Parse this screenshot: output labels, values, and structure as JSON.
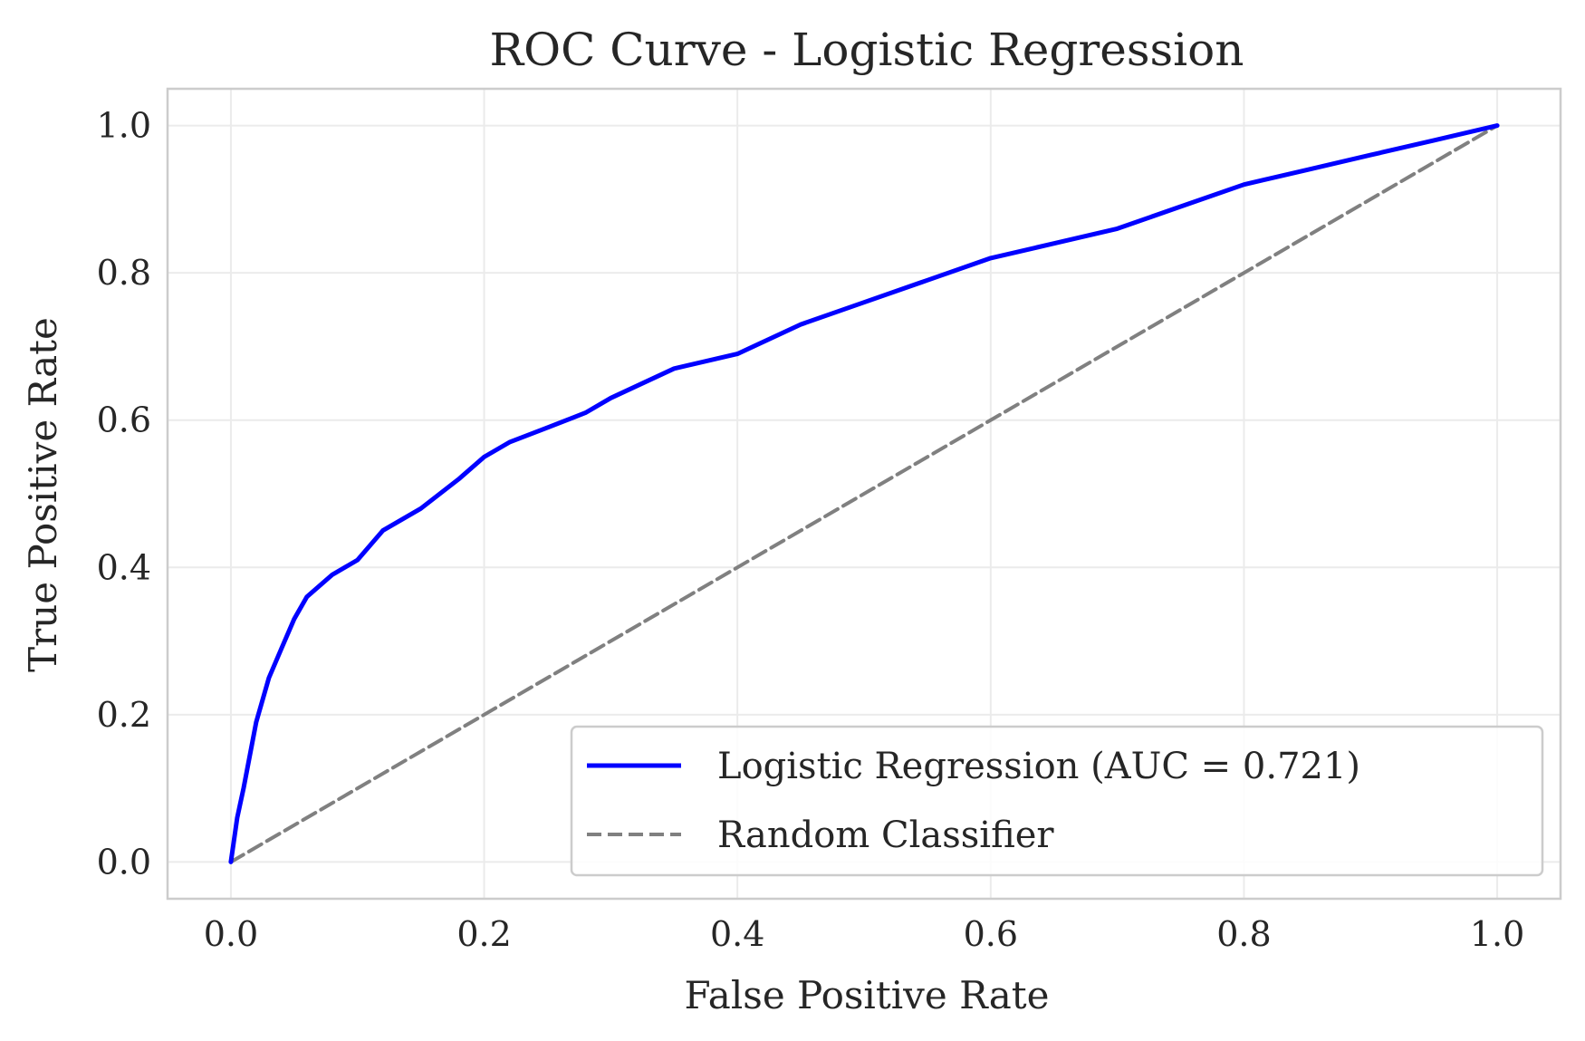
{
  "chart_data": {
    "type": "line",
    "title": "ROC Curve - Logistic Regression",
    "xlabel": "False Positive Rate",
    "ylabel": "True Positive Rate",
    "xlim": [
      -0.05,
      1.05
    ],
    "ylim": [
      -0.05,
      1.05
    ],
    "xticks": [
      "0.0",
      "0.2",
      "0.4",
      "0.6",
      "0.8",
      "1.0"
    ],
    "yticks": [
      "0.0",
      "0.2",
      "0.4",
      "0.6",
      "0.8",
      "1.0"
    ],
    "grid": true,
    "legend_position": "lower-right",
    "series": [
      {
        "name": "Logistic Regression (AUC = 0.721)",
        "color": "#0000ff",
        "style": "solid",
        "x": [
          0.0,
          0.005,
          0.01,
          0.02,
          0.03,
          0.04,
          0.05,
          0.06,
          0.08,
          0.1,
          0.12,
          0.15,
          0.18,
          0.2,
          0.22,
          0.25,
          0.28,
          0.3,
          0.35,
          0.4,
          0.45,
          0.5,
          0.55,
          0.6,
          0.65,
          0.7,
          0.75,
          0.8,
          0.85,
          0.9,
          0.95,
          1.0
        ],
        "y": [
          0.0,
          0.06,
          0.1,
          0.19,
          0.25,
          0.29,
          0.33,
          0.36,
          0.39,
          0.41,
          0.45,
          0.48,
          0.52,
          0.55,
          0.57,
          0.59,
          0.61,
          0.63,
          0.67,
          0.69,
          0.73,
          0.76,
          0.79,
          0.82,
          0.84,
          0.86,
          0.89,
          0.92,
          0.94,
          0.96,
          0.98,
          1.0
        ]
      },
      {
        "name": "Random Classifier",
        "color": "#808080",
        "style": "dashed",
        "x": [
          0.0,
          1.0
        ],
        "y": [
          0.0,
          1.0
        ]
      }
    ]
  }
}
